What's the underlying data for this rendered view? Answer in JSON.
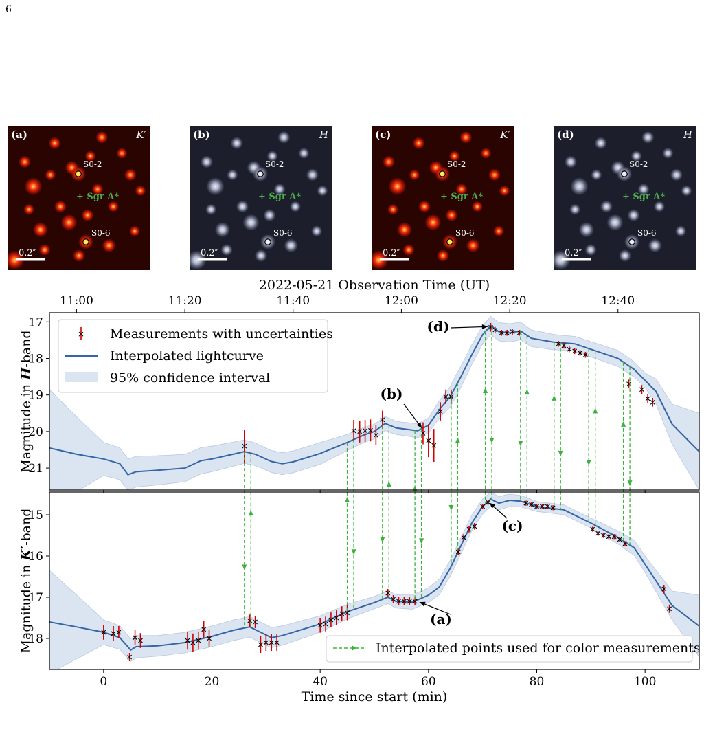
{
  "page": {
    "number": "6"
  },
  "panels": [
    {
      "letter": "(a)",
      "band": "K′",
      "scheme": "red",
      "star1": "S0-2",
      "star2": "S0-6",
      "target": "+ Sgr A*",
      "scalebar": "0.2″"
    },
    {
      "letter": "(b)",
      "band": "H",
      "scheme": "gray",
      "star1": "S0-2",
      "star2": "S0-6",
      "target": "+ Sgr A*",
      "scalebar": "0.2″"
    },
    {
      "letter": "(c)",
      "band": "K′",
      "scheme": "red",
      "star1": "S0-2",
      "star2": "S0-6",
      "target": "+ Sgr A*",
      "scalebar": "0.2″"
    },
    {
      "letter": "(d)",
      "band": "H",
      "scheme": "gray",
      "star1": "S0-2",
      "star2": "S0-6",
      "target": "+ Sgr A*",
      "scalebar": "0.2″"
    }
  ],
  "colors": {
    "line": "#3465a4",
    "band": "#dbe4f1",
    "marker": "#000000",
    "errorbar": "#d40000",
    "arrow": "#3cb33c",
    "target": "#4cae4c"
  },
  "chart_data": {
    "type": "line",
    "top_xlabel": "2022-05-21 Observation Time (UT)",
    "top_ticks": [
      "11:00",
      "11:20",
      "11:40",
      "12:00",
      "12:20",
      "12:40"
    ],
    "top_tick_positions": [
      -5,
      15,
      35,
      55,
      75,
      95
    ],
    "xlabel": "Time since start (min)",
    "xlim": [
      -10,
      110
    ],
    "xticks": [
      0,
      20,
      40,
      60,
      80,
      100
    ],
    "legend": {
      "measurements": "Measurements with uncertainties",
      "interpolated": "Interpolated lightcurve",
      "confidence": "95% confidence interval",
      "color_points": "Interpolated points used for color measurements"
    },
    "h_band": {
      "ylabel_prefix": "Magnitude in ",
      "ylabel_band": "H",
      "ylabel_suffix": "-band",
      "ylim": [
        21.6,
        16.75
      ],
      "yticks": [
        17,
        18,
        19,
        20,
        21
      ],
      "curve": [
        [
          -10,
          20.45
        ],
        [
          -5,
          20.62
        ],
        [
          0,
          20.75
        ],
        [
          3,
          20.88
        ],
        [
          4.5,
          21.18
        ],
        [
          6,
          21.1
        ],
        [
          10,
          21.06
        ],
        [
          15,
          21.0
        ],
        [
          18,
          20.8
        ],
        [
          20,
          20.75
        ],
        [
          23,
          20.65
        ],
        [
          26,
          20.55
        ],
        [
          28,
          20.62
        ],
        [
          31,
          20.82
        ],
        [
          33,
          20.88
        ],
        [
          35,
          20.83
        ],
        [
          40,
          20.6
        ],
        [
          45,
          20.3
        ],
        [
          48,
          20.1
        ],
        [
          50,
          20.0
        ],
        [
          52,
          19.78
        ],
        [
          54,
          19.9
        ],
        [
          58,
          19.98
        ],
        [
          60,
          19.83
        ],
        [
          62,
          19.4
        ],
        [
          64,
          19.05
        ],
        [
          66,
          18.5
        ],
        [
          68,
          17.9
        ],
        [
          70,
          17.35
        ],
        [
          71.5,
          17.1
        ],
        [
          73,
          17.27
        ],
        [
          75,
          17.3
        ],
        [
          77,
          17.25
        ],
        [
          79,
          17.45
        ],
        [
          83,
          17.55
        ],
        [
          87,
          17.6
        ],
        [
          90,
          17.75
        ],
        [
          95,
          18.0
        ],
        [
          98,
          18.3
        ],
        [
          102,
          18.9
        ],
        [
          105,
          19.8
        ],
        [
          110,
          20.55
        ]
      ],
      "band_width": [
        [
          -10,
          1.6
        ],
        [
          0,
          0.45
        ],
        [
          10,
          0.4
        ],
        [
          20,
          0.35
        ],
        [
          30,
          0.3
        ],
        [
          40,
          0.3
        ],
        [
          45,
          0.22
        ],
        [
          50,
          0.2
        ],
        [
          55,
          0.18
        ],
        [
          60,
          0.2
        ],
        [
          65,
          0.3
        ],
        [
          70,
          0.25
        ],
        [
          75,
          0.25
        ],
        [
          85,
          0.2
        ],
        [
          95,
          0.22
        ],
        [
          100,
          0.2
        ],
        [
          105,
          0.55
        ],
        [
          110,
          1.05
        ]
      ],
      "points": [
        [
          26,
          20.4,
          0.45
        ],
        [
          46.2,
          19.98,
          0.3
        ],
        [
          47.3,
          20.0,
          0.3
        ],
        [
          48.3,
          19.98,
          0.3
        ],
        [
          49.3,
          19.97,
          0.3
        ],
        [
          50.3,
          20.1,
          0.28
        ],
        [
          51.5,
          19.68,
          0.25
        ],
        [
          59,
          20.05,
          0.3
        ],
        [
          60,
          20.25,
          0.45
        ],
        [
          61,
          20.38,
          0.45
        ],
        [
          62.2,
          19.45,
          0.25
        ],
        [
          63.2,
          19.05,
          0.2
        ],
        [
          64.2,
          19.05,
          0.2
        ],
        [
          71.5,
          17.15,
          0.12
        ],
        [
          72.3,
          17.22,
          0.08
        ],
        [
          73.5,
          17.3,
          0.08
        ],
        [
          74.5,
          17.3,
          0.08
        ],
        [
          75.5,
          17.27,
          0.08
        ],
        [
          76.8,
          17.3,
          0.08
        ],
        [
          84,
          17.6,
          0.08
        ],
        [
          85,
          17.65,
          0.08
        ],
        [
          86,
          17.75,
          0.08
        ],
        [
          87,
          17.8,
          0.08
        ],
        [
          88,
          17.85,
          0.08
        ],
        [
          89,
          17.9,
          0.08
        ],
        [
          97,
          18.7,
          0.12
        ],
        [
          99.4,
          18.85,
          0.12
        ],
        [
          100.5,
          19.1,
          0.12
        ],
        [
          101.4,
          19.2,
          0.12
        ]
      ]
    },
    "k_band": {
      "ylabel_prefix": "Magnitude in ",
      "ylabel_band": "K′",
      "ylabel_suffix": "-band",
      "ylim": [
        18.75,
        14.45
      ],
      "yticks": [
        15,
        16,
        17,
        18
      ],
      "curve": [
        [
          -10,
          17.6
        ],
        [
          -5,
          17.72
        ],
        [
          0,
          17.85
        ],
        [
          3,
          17.98
        ],
        [
          5,
          18.28
        ],
        [
          6,
          18.2
        ],
        [
          10,
          18.18
        ],
        [
          15,
          18.1
        ],
        [
          20,
          17.95
        ],
        [
          24,
          17.8
        ],
        [
          27,
          17.72
        ],
        [
          29,
          17.85
        ],
        [
          31,
          17.98
        ],
        [
          33,
          17.93
        ],
        [
          40,
          17.65
        ],
        [
          45,
          17.35
        ],
        [
          50,
          17.13
        ],
        [
          52.5,
          17.0
        ],
        [
          54,
          17.1
        ],
        [
          57,
          17.12
        ],
        [
          60,
          16.95
        ],
        [
          62,
          16.75
        ],
        [
          64,
          16.3
        ],
        [
          66,
          15.75
        ],
        [
          68,
          15.2
        ],
        [
          70,
          14.8
        ],
        [
          71.5,
          14.62
        ],
        [
          73,
          14.72
        ],
        [
          75,
          14.65
        ],
        [
          77,
          14.67
        ],
        [
          80,
          14.8
        ],
        [
          85,
          14.88
        ],
        [
          90,
          15.2
        ],
        [
          95,
          15.55
        ],
        [
          98,
          15.8
        ],
        [
          102,
          16.6
        ],
        [
          105,
          17.2
        ],
        [
          110,
          17.7
        ]
      ],
      "band_width": [
        [
          -10,
          1.25
        ],
        [
          0,
          0.3
        ],
        [
          10,
          0.25
        ],
        [
          20,
          0.25
        ],
        [
          30,
          0.25
        ],
        [
          40,
          0.2
        ],
        [
          50,
          0.15
        ],
        [
          60,
          0.18
        ],
        [
          65,
          0.2
        ],
        [
          70,
          0.18
        ],
        [
          80,
          0.12
        ],
        [
          90,
          0.12
        ],
        [
          100,
          0.2
        ],
        [
          105,
          0.35
        ],
        [
          110,
          0.75
        ]
      ],
      "points": [
        [
          0,
          17.85,
          0.18
        ],
        [
          1.8,
          17.88,
          0.18
        ],
        [
          2.8,
          17.85,
          0.15
        ],
        [
          4.8,
          18.45,
          0.1
        ],
        [
          5.8,
          17.98,
          0.18
        ],
        [
          6.8,
          18.05,
          0.18
        ],
        [
          15.5,
          18.05,
          0.22
        ],
        [
          16.5,
          18.1,
          0.22
        ],
        [
          17.5,
          18.05,
          0.22
        ],
        [
          18.5,
          17.78,
          0.2
        ],
        [
          19.5,
          18.0,
          0.2
        ],
        [
          27,
          17.57,
          0.15
        ],
        [
          28,
          17.6,
          0.15
        ],
        [
          29,
          18.15,
          0.2
        ],
        [
          30,
          18.1,
          0.2
        ],
        [
          31,
          18.1,
          0.2
        ],
        [
          32,
          18.1,
          0.2
        ],
        [
          40,
          17.68,
          0.18
        ],
        [
          41,
          17.65,
          0.18
        ],
        [
          42,
          17.55,
          0.18
        ],
        [
          43,
          17.5,
          0.18
        ],
        [
          44,
          17.4,
          0.18
        ],
        [
          45,
          17.38,
          0.18
        ],
        [
          52.5,
          16.9,
          0.1
        ],
        [
          53.5,
          17.05,
          0.1
        ],
        [
          54.5,
          17.1,
          0.1
        ],
        [
          55.5,
          17.1,
          0.1
        ],
        [
          56.5,
          17.1,
          0.1
        ],
        [
          57.5,
          17.1,
          0.1
        ],
        [
          65.5,
          15.9,
          0.08
        ],
        [
          66.5,
          15.55,
          0.08
        ],
        [
          67.5,
          15.35,
          0.08
        ],
        [
          68.5,
          15.28,
          0.08
        ],
        [
          70,
          14.8,
          0.06
        ],
        [
          71,
          14.7,
          0.06
        ],
        [
          78,
          14.72,
          0.06
        ],
        [
          79,
          14.75,
          0.06
        ],
        [
          80,
          14.8,
          0.06
        ],
        [
          81,
          14.8,
          0.06
        ],
        [
          82,
          14.8,
          0.06
        ],
        [
          83,
          14.83,
          0.06
        ],
        [
          90.3,
          15.35,
          0.06
        ],
        [
          91.3,
          15.45,
          0.06
        ],
        [
          92.3,
          15.5,
          0.06
        ],
        [
          93.3,
          15.53,
          0.06
        ],
        [
          94.3,
          15.53,
          0.06
        ],
        [
          95.3,
          15.6,
          0.06
        ],
        [
          96.3,
          15.7,
          0.06
        ],
        [
          103.5,
          16.8,
          0.1
        ],
        [
          104.5,
          17.28,
          0.1
        ]
      ]
    },
    "color_arrows": [
      {
        "x": 26,
        "dir": "down"
      },
      {
        "x": 27.2,
        "dir": "up"
      },
      {
        "x": 45,
        "dir": "up"
      },
      {
        "x": 46.2,
        "dir": "down"
      },
      {
        "x": 51.5,
        "dir": "down"
      },
      {
        "x": 52.7,
        "dir": "up"
      },
      {
        "x": 57.5,
        "dir": "up"
      },
      {
        "x": 58.7,
        "dir": "down"
      },
      {
        "x": 64.2,
        "dir": "down"
      },
      {
        "x": 65.4,
        "dir": "up"
      },
      {
        "x": 70.5,
        "dir": "up"
      },
      {
        "x": 71.7,
        "dir": "down"
      },
      {
        "x": 77,
        "dir": "down"
      },
      {
        "x": 78.2,
        "dir": "up"
      },
      {
        "x": 83.2,
        "dir": "up"
      },
      {
        "x": 84.4,
        "dir": "down"
      },
      {
        "x": 89.6,
        "dir": "down"
      },
      {
        "x": 90.8,
        "dir": "up"
      },
      {
        "x": 96,
        "dir": "up"
      },
      {
        "x": 97.2,
        "dir": "down"
      }
    ],
    "annotations": [
      {
        "label": "(a)",
        "panel": "k",
        "x": 58,
        "y": 17.1
      },
      {
        "label": "(b)",
        "panel": "h",
        "x": 59,
        "y": 19.95
      },
      {
        "label": "(c)",
        "panel": "k",
        "x": 71,
        "y": 14.68
      },
      {
        "label": "(d)",
        "panel": "h",
        "x": 71.3,
        "y": 17.13
      }
    ]
  }
}
